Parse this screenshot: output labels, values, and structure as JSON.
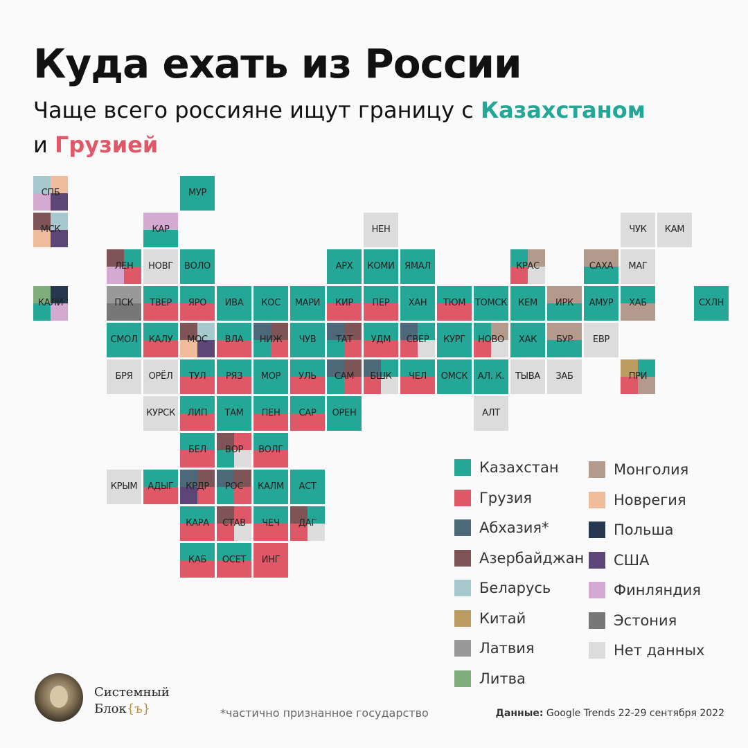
{
  "header": {
    "title": "Куда ехать из России",
    "subtitle_line1_prefix": "Чаще всего россияне ищут границу с ",
    "subtitle_line1_highlight": "Казахстаном",
    "subtitle_line2_prefix": "и ",
    "subtitle_line2_highlight": "Грузией"
  },
  "colors": {
    "KZ": "#25a797",
    "GE": "#df5868",
    "AB": "#4d6878",
    "AZ": "#7e5456",
    "BY": "#a6c9ce",
    "CN": "#bd9c61",
    "LV": "#999999",
    "LT": "#7fae7a",
    "MN": "#b39a8c",
    "NO": "#f0bd9c",
    "PL": "#26384f",
    "US": "#5c4577",
    "FI": "#d4a9d2",
    "EE": "#777777",
    "NA": "#dcdcdc"
  },
  "regions": [
    {
      "code": "СПБ",
      "col": 0,
      "row": 0,
      "parts": [
        "BY",
        "NO",
        "FI",
        "US"
      ]
    },
    {
      "code": "МУР",
      "col": 4,
      "row": 0,
      "parts": [
        "KZ"
      ]
    },
    {
      "code": "МСК",
      "col": 0,
      "row": 1,
      "parts": [
        "AZ",
        "BY",
        "NO",
        "US"
      ]
    },
    {
      "code": "КАР",
      "col": 3,
      "row": 1,
      "parts": [
        "FI",
        "KZ"
      ]
    },
    {
      "code": "НЕН",
      "col": 9,
      "row": 1,
      "parts": [
        "NA"
      ]
    },
    {
      "code": "ЧУК",
      "col": 16,
      "row": 1,
      "parts": [
        "NA"
      ]
    },
    {
      "code": "КАМ",
      "col": 17,
      "row": 1,
      "parts": [
        "NA"
      ]
    },
    {
      "code": "ЛЕН",
      "col": 2,
      "row": 2,
      "parts": [
        "AZ",
        "KZ",
        "FI",
        "GE"
      ]
    },
    {
      "code": "НОВГ",
      "col": 3,
      "row": 2,
      "parts": [
        "NA"
      ]
    },
    {
      "code": "ВОЛО",
      "col": 4,
      "row": 2,
      "parts": [
        "KZ"
      ]
    },
    {
      "code": "АРХ",
      "col": 8,
      "row": 2,
      "parts": [
        "KZ"
      ]
    },
    {
      "code": "КОМИ",
      "col": 9,
      "row": 2,
      "parts": [
        "KZ"
      ]
    },
    {
      "code": "ЯМАЛ",
      "col": 10,
      "row": 2,
      "parts": [
        "KZ"
      ]
    },
    {
      "code": "КРАС",
      "col": 13,
      "row": 2,
      "parts": [
        "KZ",
        "MN",
        "GE",
        "NA"
      ]
    },
    {
      "code": "САХА",
      "col": 15,
      "row": 2,
      "parts": [
        "MN",
        "KZ"
      ]
    },
    {
      "code": "МАГ",
      "col": 16,
      "row": 2,
      "parts": [
        "NA"
      ]
    },
    {
      "code": "КАЛИ",
      "col": 0,
      "row": 3,
      "parts": [
        "LT",
        "PL",
        "KZ",
        "FI"
      ]
    },
    {
      "code": "ПСК",
      "col": 2,
      "row": 3,
      "parts": [
        "LV",
        "EE"
      ]
    },
    {
      "code": "ТВЕР",
      "col": 3,
      "row": 3,
      "parts": [
        "KZ",
        "GE"
      ]
    },
    {
      "code": "ЯРО",
      "col": 4,
      "row": 3,
      "parts": [
        "KZ",
        "GE"
      ]
    },
    {
      "code": "ИВА",
      "col": 5,
      "row": 3,
      "parts": [
        "KZ"
      ]
    },
    {
      "code": "КОС",
      "col": 6,
      "row": 3,
      "parts": [
        "KZ"
      ]
    },
    {
      "code": "МАРИ",
      "col": 7,
      "row": 3,
      "parts": [
        "KZ"
      ]
    },
    {
      "code": "КИР",
      "col": 8,
      "row": 3,
      "parts": [
        "KZ",
        "GE"
      ]
    },
    {
      "code": "ПЕР",
      "col": 9,
      "row": 3,
      "parts": [
        "KZ",
        "GE"
      ]
    },
    {
      "code": "ХАН",
      "col": 10,
      "row": 3,
      "parts": [
        "KZ"
      ]
    },
    {
      "code": "ТЮМ",
      "col": 11,
      "row": 3,
      "parts": [
        "KZ",
        "GE"
      ]
    },
    {
      "code": "ТОМСК",
      "col": 12,
      "row": 3,
      "parts": [
        "KZ"
      ]
    },
    {
      "code": "КЕМ",
      "col": 13,
      "row": 3,
      "parts": [
        "KZ"
      ]
    },
    {
      "code": "ИРК",
      "col": 14,
      "row": 3,
      "parts": [
        "MN",
        "KZ"
      ]
    },
    {
      "code": "АМУР",
      "col": 15,
      "row": 3,
      "parts": [
        "KZ"
      ]
    },
    {
      "code": "ХАБ",
      "col": 16,
      "row": 3,
      "parts": [
        "KZ",
        "MN"
      ]
    },
    {
      "code": "СХЛН",
      "col": 18,
      "row": 3,
      "parts": [
        "KZ"
      ]
    },
    {
      "code": "СМОЛ",
      "col": 2,
      "row": 4,
      "parts": [
        "KZ"
      ]
    },
    {
      "code": "КАЛУ",
      "col": 3,
      "row": 4,
      "parts": [
        "KZ",
        "GE"
      ]
    },
    {
      "code": "МОС",
      "col": 4,
      "row": 4,
      "parts": [
        "AZ",
        "BY",
        "NO",
        "US"
      ]
    },
    {
      "code": "ВЛА",
      "col": 5,
      "row": 4,
      "parts": [
        "KZ",
        "GE"
      ]
    },
    {
      "code": "НИЖ",
      "col": 6,
      "row": 4,
      "parts": [
        "AB",
        "AZ",
        "KZ",
        "GE"
      ]
    },
    {
      "code": "ЧУВ",
      "col": 7,
      "row": 4,
      "parts": [
        "KZ"
      ]
    },
    {
      "code": "ТАТ",
      "col": 8,
      "row": 4,
      "parts": [
        "AB",
        "AZ",
        "KZ",
        "GE"
      ]
    },
    {
      "code": "УДМ",
      "col": 9,
      "row": 4,
      "parts": [
        "KZ",
        "GE"
      ]
    },
    {
      "code": "СВЕР",
      "col": 10,
      "row": 4,
      "parts": [
        "AB",
        "KZ",
        "GE",
        "NA"
      ]
    },
    {
      "code": "КУРГ",
      "col": 11,
      "row": 4,
      "parts": [
        "KZ"
      ]
    },
    {
      "code": "НОВО",
      "col": 12,
      "row": 4,
      "parts": [
        "KZ",
        "MN",
        "GE",
        "NA"
      ]
    },
    {
      "code": "ХАК",
      "col": 13,
      "row": 4,
      "parts": [
        "KZ"
      ]
    },
    {
      "code": "БУР",
      "col": 14,
      "row": 4,
      "parts": [
        "MN",
        "KZ"
      ]
    },
    {
      "code": "ЕВР",
      "col": 15,
      "row": 4,
      "parts": [
        "NA"
      ]
    },
    {
      "code": "БРЯ",
      "col": 2,
      "row": 5,
      "parts": [
        "NA"
      ]
    },
    {
      "code": "ОРЁЛ",
      "col": 3,
      "row": 5,
      "parts": [
        "NA"
      ]
    },
    {
      "code": "ТУЛ",
      "col": 4,
      "row": 5,
      "parts": [
        "KZ",
        "GE"
      ]
    },
    {
      "code": "РЯЗ",
      "col": 5,
      "row": 5,
      "parts": [
        "KZ",
        "GE"
      ]
    },
    {
      "code": "МОР",
      "col": 6,
      "row": 5,
      "parts": [
        "KZ"
      ]
    },
    {
      "code": "УЛЬ",
      "col": 7,
      "row": 5,
      "parts": [
        "KZ",
        "GE"
      ]
    },
    {
      "code": "САМ",
      "col": 8,
      "row": 5,
      "parts": [
        "AB",
        "AZ",
        "KZ",
        "GE"
      ]
    },
    {
      "code": "БШК",
      "col": 9,
      "row": 5,
      "parts": [
        "AB",
        "KZ",
        "GE",
        "NA"
      ]
    },
    {
      "code": "ЧЕЛ",
      "col": 10,
      "row": 5,
      "parts": [
        "KZ",
        "GE"
      ]
    },
    {
      "code": "ОМСК",
      "col": 11,
      "row": 5,
      "parts": [
        "KZ"
      ]
    },
    {
      "code": "АЛ. К.",
      "col": 12,
      "row": 5,
      "parts": [
        "KZ"
      ]
    },
    {
      "code": "ТЫВА",
      "col": 13,
      "row": 5,
      "parts": [
        "NA"
      ]
    },
    {
      "code": "ЗАБ",
      "col": 14,
      "row": 5,
      "parts": [
        "NA"
      ]
    },
    {
      "code": "ПРИ",
      "col": 16,
      "row": 5,
      "parts": [
        "CN",
        "KZ",
        "GE",
        "MN"
      ]
    },
    {
      "code": "КУРСК",
      "col": 3,
      "row": 6,
      "parts": [
        "NA"
      ]
    },
    {
      "code": "ЛИП",
      "col": 4,
      "row": 6,
      "parts": [
        "KZ",
        "GE"
      ]
    },
    {
      "code": "ТАМ",
      "col": 5,
      "row": 6,
      "parts": [
        "KZ"
      ]
    },
    {
      "code": "ПЕН",
      "col": 6,
      "row": 6,
      "parts": [
        "KZ",
        "GE"
      ]
    },
    {
      "code": "САР",
      "col": 7,
      "row": 6,
      "parts": [
        "KZ",
        "GE"
      ]
    },
    {
      "code": "ОРЕН",
      "col": 8,
      "row": 6,
      "parts": [
        "KZ"
      ]
    },
    {
      "code": "АЛТ",
      "col": 12,
      "row": 6,
      "parts": [
        "NA"
      ]
    },
    {
      "code": "БЕЛ",
      "col": 4,
      "row": 7,
      "parts": [
        "KZ",
        "GE"
      ]
    },
    {
      "code": "ВОР",
      "col": 5,
      "row": 7,
      "parts": [
        "AZ",
        "GE",
        "KZ",
        "NA"
      ]
    },
    {
      "code": "ВОЛГ",
      "col": 6,
      "row": 7,
      "parts": [
        "KZ",
        "GE"
      ]
    },
    {
      "code": "КРЫМ",
      "col": 2,
      "row": 8,
      "parts": [
        "NA"
      ]
    },
    {
      "code": "АДЫГ",
      "col": 3,
      "row": 8,
      "parts": [
        "KZ",
        "GE"
      ]
    },
    {
      "code": "КРДР",
      "col": 4,
      "row": 8,
      "parts": [
        "AB",
        "AZ",
        "US",
        "GE"
      ]
    },
    {
      "code": "РОС",
      "col": 5,
      "row": 8,
      "parts": [
        "AB",
        "AZ",
        "KZ",
        "GE"
      ]
    },
    {
      "code": "КАЛМ",
      "col": 6,
      "row": 8,
      "parts": [
        "KZ"
      ]
    },
    {
      "code": "АСТ",
      "col": 7,
      "row": 8,
      "parts": [
        "KZ"
      ]
    },
    {
      "code": "КАРА",
      "col": 4,
      "row": 9,
      "parts": [
        "KZ",
        "GE"
      ]
    },
    {
      "code": "СТАВ",
      "col": 5,
      "row": 9,
      "parts": [
        "AZ",
        "GE",
        "GE",
        "NA"
      ]
    },
    {
      "code": "ЧЕЧ",
      "col": 6,
      "row": 9,
      "parts": [
        "KZ",
        "GE"
      ]
    },
    {
      "code": "ДАГ",
      "col": 7,
      "row": 9,
      "parts": [
        "AZ",
        "KZ",
        "GE",
        "NA"
      ]
    },
    {
      "code": "КАБ",
      "col": 4,
      "row": 10,
      "parts": [
        "KZ",
        "GE"
      ]
    },
    {
      "code": "ОСЕТ",
      "col": 5,
      "row": 10,
      "parts": [
        "KZ",
        "GE"
      ]
    },
    {
      "code": "ИНГ",
      "col": 6,
      "row": 10,
      "parts": [
        "GE"
      ]
    }
  ],
  "legend": {
    "left": [
      {
        "key": "KZ",
        "label": "Казахстан"
      },
      {
        "key": "GE",
        "label": "Грузия"
      },
      {
        "key": "AB",
        "label": "Абхазия*"
      },
      {
        "key": "AZ",
        "label": "Азербайджан"
      },
      {
        "key": "BY",
        "label": "Беларусь"
      },
      {
        "key": "CN",
        "label": "Китай"
      },
      {
        "key": "LV",
        "label": "Латвия"
      },
      {
        "key": "LT",
        "label": "Литва"
      }
    ],
    "right": [
      {
        "key": "MN",
        "label": "Монголия"
      },
      {
        "key": "NO",
        "label": "Новрегия"
      },
      {
        "key": "PL",
        "label": "Польша"
      },
      {
        "key": "US",
        "label": "США"
      },
      {
        "key": "FI",
        "label": "Финляндия"
      },
      {
        "key": "EE",
        "label": "Эстония"
      },
      {
        "key": "NA",
        "label": "Нет данных"
      }
    ]
  },
  "footer": {
    "brand_line1": "Системный",
    "brand_line2": "Блок",
    "brand_brace": "{ъ}",
    "footnote": "*частично признанное государство",
    "source_label": "Данные:",
    "source_text": " Google Trends 22-29 сентября 2022"
  }
}
